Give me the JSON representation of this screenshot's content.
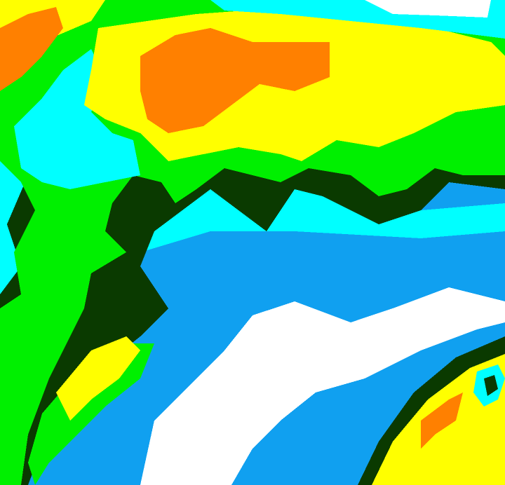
{
  "map": {
    "type": "classified raster",
    "palette": {
      "white": "#ffffff",
      "blue": "#10a0f0",
      "cyan": "#00ffff",
      "dark_green": "#0a3a00",
      "green": "#00f000",
      "yellow": "#ffff00",
      "orange": "#ff8000"
    }
  }
}
